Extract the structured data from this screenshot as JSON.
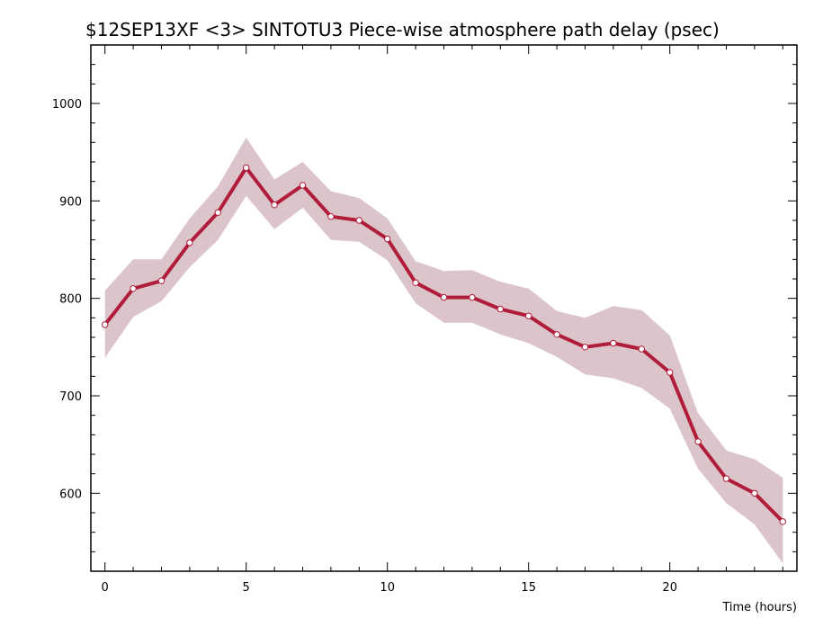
{
  "chart_data": {
    "type": "line",
    "title": "$12SEP13XF <3>  SINTOTU3  Piece-wise atmosphere path delay (psec)",
    "xlabel": "Time (hours)",
    "ylabel": "",
    "xlim": [
      -0.5,
      24.5
    ],
    "ylim": [
      520,
      1060
    ],
    "x_ticks": [
      0,
      5,
      10,
      15,
      20
    ],
    "y_ticks": [
      600,
      700,
      800,
      900,
      1000
    ],
    "x_tick_labels": [
      "0",
      "5",
      "10",
      "15",
      "20"
    ],
    "y_tick_labels": [
      "600",
      "700",
      "800",
      "900",
      "1000"
    ],
    "x": [
      0,
      1,
      2,
      3,
      4,
      5,
      6,
      7,
      8,
      9,
      10,
      11,
      12,
      13,
      14,
      15,
      16,
      17,
      18,
      19,
      20,
      21,
      22,
      23,
      24
    ],
    "series": [
      {
        "values": [
          773,
          810,
          818,
          857,
          888,
          934,
          896,
          916,
          884,
          880,
          861,
          816,
          801,
          801,
          789,
          782,
          763,
          750,
          754,
          748,
          724,
          653,
          615,
          600,
          571
        ],
        "upper": [
          808,
          840,
          840,
          882,
          915,
          965,
          922,
          940,
          910,
          903,
          882,
          838,
          828,
          829,
          817,
          810,
          787,
          780,
          792,
          788,
          762,
          682,
          644,
          635,
          616
        ],
        "lower": [
          739,
          781,
          797,
          832,
          860,
          905,
          871,
          893,
          860,
          858,
          839,
          795,
          775,
          775,
          763,
          754,
          740,
          722,
          718,
          708,
          687,
          625,
          590,
          568,
          528
        ]
      }
    ],
    "colors": {
      "line": "#b01c3a",
      "band": "#dbc5ca",
      "marker_fill": "#ffffff"
    },
    "grid": false,
    "legend": "none"
  }
}
